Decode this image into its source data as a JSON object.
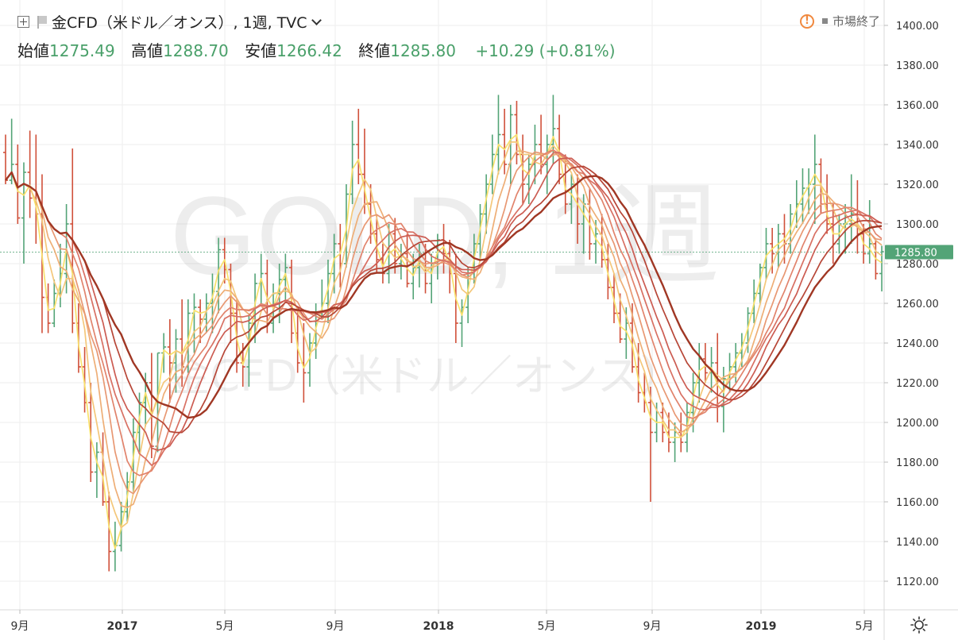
{
  "header": {
    "symbol": "金CFD（米ドル／オンス）, 1週, TVC",
    "open_label": "始値",
    "open_value": "1275.49",
    "high_label": "高値",
    "high_value": "1288.70",
    "low_label": "安値",
    "low_value": "1266.42",
    "close_label": "終値",
    "close_value": "1285.80",
    "change": "+10.29 (+0.81%)",
    "market_status": "市場終了"
  },
  "watermark": {
    "line1": "GOLD, 1週",
    "line2": "金CFD（米ドル／オンス）"
  },
  "colors": {
    "up": "#53a477",
    "down": "#d0503a",
    "grid": "#eeeeee",
    "price_tag": "#53a477"
  },
  "chart_data": {
    "type": "ohlc-bar",
    "ylim": [
      1110,
      1410
    ],
    "y_ticks": [
      "1400.00",
      "1380.00",
      "1360.00",
      "1340.00",
      "1320.00",
      "1300.00",
      "1280.00",
      "1260.00",
      "1240.00",
      "1220.00",
      "1200.00",
      "1180.00",
      "1160.00",
      "1140.00",
      "1120.00"
    ],
    "x_ticks": [
      "9月",
      "2017",
      "5月",
      "9月",
      "2018",
      "5月",
      "9月",
      "2019",
      "5月"
    ],
    "last_price": "1285.80",
    "bars": [
      [
        1336,
        1345,
        1320,
        1322
      ],
      [
        1322,
        1353,
        1320,
        1330
      ],
      [
        1330,
        1340,
        1300,
        1303
      ],
      [
        1303,
        1331,
        1280,
        1326
      ],
      [
        1326,
        1347,
        1303,
        1313
      ],
      [
        1313,
        1345,
        1290,
        1305
      ],
      [
        1305,
        1325,
        1245,
        1263
      ],
      [
        1263,
        1270,
        1245,
        1250
      ],
      [
        1250,
        1272,
        1248,
        1265
      ],
      [
        1265,
        1290,
        1258,
        1275
      ],
      [
        1275,
        1310,
        1265,
        1300
      ],
      [
        1300,
        1338,
        1245,
        1250
      ],
      [
        1250,
        1260,
        1225,
        1228
      ],
      [
        1228,
        1238,
        1205,
        1210
      ],
      [
        1210,
        1220,
        1170,
        1175
      ],
      [
        1175,
        1190,
        1162,
        1185
      ],
      [
        1185,
        1195,
        1158,
        1160
      ],
      [
        1160,
        1165,
        1125,
        1135
      ],
      [
        1135,
        1150,
        1125,
        1138
      ],
      [
        1138,
        1160,
        1135,
        1155
      ],
      [
        1155,
        1175,
        1150,
        1170
      ],
      [
        1170,
        1202,
        1165,
        1195
      ],
      [
        1195,
        1215,
        1185,
        1210
      ],
      [
        1210,
        1225,
        1198,
        1220
      ],
      [
        1220,
        1235,
        1182,
        1188
      ],
      [
        1188,
        1235,
        1185,
        1235
      ],
      [
        1235,
        1245,
        1225,
        1238
      ],
      [
        1238,
        1252,
        1210,
        1230
      ],
      [
        1230,
        1247,
        1215,
        1242
      ],
      [
        1242,
        1262,
        1218,
        1228
      ],
      [
        1228,
        1262,
        1225,
        1255
      ],
      [
        1255,
        1265,
        1235,
        1258
      ],
      [
        1258,
        1262,
        1240,
        1252
      ],
      [
        1252,
        1265,
        1245,
        1260
      ],
      [
        1260,
        1275,
        1245,
        1266
      ],
      [
        1266,
        1293,
        1255,
        1287
      ],
      [
        1287,
        1293,
        1270,
        1277
      ],
      [
        1277,
        1280,
        1240,
        1255
      ],
      [
        1255,
        1262,
        1225,
        1230
      ],
      [
        1230,
        1240,
        1218,
        1228
      ],
      [
        1228,
        1255,
        1218,
        1250
      ],
      [
        1250,
        1275,
        1240,
        1270
      ],
      [
        1270,
        1285,
        1260,
        1275
      ],
      [
        1275,
        1282,
        1245,
        1250
      ],
      [
        1250,
        1270,
        1245,
        1265
      ],
      [
        1265,
        1280,
        1250,
        1272
      ],
      [
        1272,
        1285,
        1262,
        1278
      ],
      [
        1278,
        1282,
        1240,
        1245
      ],
      [
        1245,
        1258,
        1225,
        1230
      ],
      [
        1230,
        1250,
        1210,
        1225
      ],
      [
        1225,
        1245,
        1218,
        1240
      ],
      [
        1240,
        1260,
        1232,
        1255
      ],
      [
        1255,
        1272,
        1252,
        1260
      ],
      [
        1260,
        1282,
        1250,
        1275
      ],
      [
        1275,
        1295,
        1265,
        1290
      ],
      [
        1290,
        1300,
        1268,
        1280
      ],
      [
        1280,
        1320,
        1278,
        1315
      ],
      [
        1315,
        1352,
        1310,
        1340
      ],
      [
        1340,
        1358,
        1320,
        1325
      ],
      [
        1325,
        1348,
        1305,
        1310
      ],
      [
        1310,
        1320,
        1290,
        1295
      ],
      [
        1295,
        1305,
        1275,
        1282
      ],
      [
        1282,
        1290,
        1270,
        1275
      ],
      [
        1275,
        1300,
        1270,
        1295
      ],
      [
        1295,
        1303,
        1275,
        1280
      ],
      [
        1280,
        1290,
        1272,
        1285
      ],
      [
        1285,
        1295,
        1268,
        1270
      ],
      [
        1270,
        1285,
        1262,
        1278
      ],
      [
        1278,
        1290,
        1268,
        1285
      ],
      [
        1285,
        1290,
        1265,
        1270
      ],
      [
        1270,
        1285,
        1260,
        1280
      ],
      [
        1280,
        1295,
        1272,
        1292
      ],
      [
        1292,
        1300,
        1275,
        1285
      ],
      [
        1285,
        1292,
        1265,
        1275
      ],
      [
        1275,
        1285,
        1240,
        1250
      ],
      [
        1250,
        1262,
        1238,
        1258
      ],
      [
        1258,
        1278,
        1250,
        1275
      ],
      [
        1275,
        1295,
        1270,
        1290
      ],
      [
        1290,
        1310,
        1282,
        1305
      ],
      [
        1305,
        1325,
        1295,
        1320
      ],
      [
        1320,
        1345,
        1315,
        1335
      ],
      [
        1335,
        1365,
        1325,
        1345
      ],
      [
        1345,
        1358,
        1325,
        1330
      ],
      [
        1330,
        1360,
        1320,
        1355
      ],
      [
        1355,
        1362,
        1330,
        1335
      ],
      [
        1335,
        1345,
        1310,
        1320
      ],
      [
        1320,
        1335,
        1310,
        1330
      ],
      [
        1330,
        1350,
        1320,
        1340
      ],
      [
        1340,
        1355,
        1325,
        1330
      ],
      [
        1330,
        1345,
        1315,
        1340
      ],
      [
        1340,
        1365,
        1330,
        1348
      ],
      [
        1348,
        1355,
        1320,
        1325
      ],
      [
        1325,
        1335,
        1305,
        1310
      ],
      [
        1310,
        1325,
        1300,
        1320
      ],
      [
        1320,
        1325,
        1290,
        1300
      ],
      [
        1300,
        1315,
        1285,
        1310
      ],
      [
        1310,
        1318,
        1282,
        1290
      ],
      [
        1290,
        1302,
        1280,
        1295
      ],
      [
        1295,
        1305,
        1278,
        1282
      ],
      [
        1282,
        1290,
        1262,
        1268
      ],
      [
        1268,
        1275,
        1250,
        1255
      ],
      [
        1255,
        1265,
        1240,
        1242
      ],
      [
        1242,
        1258,
        1232,
        1250
      ],
      [
        1250,
        1260,
        1225,
        1228
      ],
      [
        1228,
        1240,
        1210,
        1215
      ],
      [
        1215,
        1225,
        1205,
        1210
      ],
      [
        1210,
        1218,
        1160,
        1195
      ],
      [
        1195,
        1210,
        1190,
        1205
      ],
      [
        1205,
        1210,
        1190,
        1195
      ],
      [
        1195,
        1205,
        1185,
        1190
      ],
      [
        1190,
        1200,
        1180,
        1195
      ],
      [
        1195,
        1205,
        1185,
        1190
      ],
      [
        1190,
        1210,
        1185,
        1205
      ],
      [
        1205,
        1225,
        1195,
        1220
      ],
      [
        1220,
        1240,
        1210,
        1232
      ],
      [
        1232,
        1240,
        1220,
        1225
      ],
      [
        1225,
        1238,
        1215,
        1230
      ],
      [
        1230,
        1245,
        1200,
        1208
      ],
      [
        1208,
        1228,
        1195,
        1222
      ],
      [
        1222,
        1235,
        1215,
        1228
      ],
      [
        1228,
        1240,
        1220,
        1235
      ],
      [
        1235,
        1245,
        1228,
        1240
      ],
      [
        1240,
        1258,
        1235,
        1255
      ],
      [
        1255,
        1272,
        1250,
        1265
      ],
      [
        1265,
        1280,
        1260,
        1278
      ],
      [
        1278,
        1298,
        1272,
        1290
      ],
      [
        1290,
        1298,
        1275,
        1285
      ],
      [
        1285,
        1300,
        1278,
        1295
      ],
      [
        1295,
        1305,
        1280,
        1290
      ],
      [
        1290,
        1310,
        1285,
        1305
      ],
      [
        1305,
        1322,
        1298,
        1310
      ],
      [
        1310,
        1328,
        1300,
        1318
      ],
      [
        1318,
        1328,
        1305,
        1320
      ],
      [
        1320,
        1345,
        1300,
        1330
      ],
      [
        1330,
        1333,
        1305,
        1310
      ],
      [
        1310,
        1325,
        1295,
        1300
      ],
      [
        1300,
        1310,
        1280,
        1290
      ],
      [
        1290,
        1305,
        1285,
        1300
      ],
      [
        1300,
        1310,
        1285,
        1300
      ],
      [
        1300,
        1325,
        1290,
        1305
      ],
      [
        1305,
        1322,
        1285,
        1295
      ],
      [
        1295,
        1300,
        1280,
        1285
      ],
      [
        1285,
        1312,
        1280,
        1290
      ],
      [
        1290,
        1292,
        1272,
        1275
      ],
      [
        1275,
        1289,
        1266,
        1286
      ]
    ],
    "ma_colors": [
      "#f8e16c",
      "#f4c77a",
      "#eeae76",
      "#e89873",
      "#e1836c",
      "#d87063",
      "#cc5c52",
      "#b74637",
      "#a03724"
    ],
    "ma_periods": [
      2,
      4,
      6,
      8,
      10,
      12,
      14,
      17,
      20
    ]
  }
}
